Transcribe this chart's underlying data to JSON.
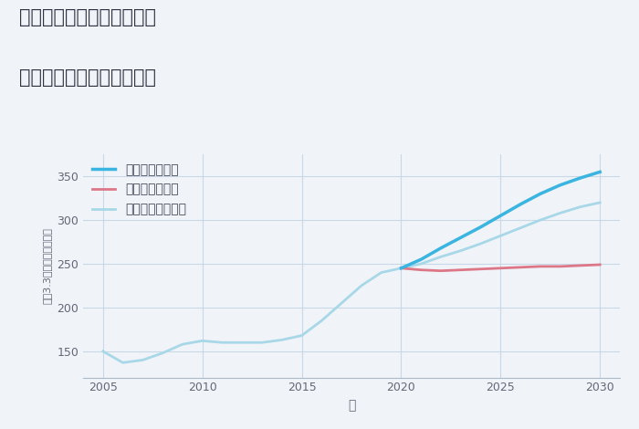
{
  "title_line1": "神奈川県横浜市中区寿町の",
  "title_line2": "中古マンションの価格推移",
  "xlabel": "年",
  "ylabel": "坪（3.3㎡）単価（万円）",
  "xlim": [
    2004,
    2031
  ],
  "ylim": [
    120,
    375
  ],
  "yticks": [
    150,
    200,
    250,
    300,
    350
  ],
  "xticks": [
    2005,
    2010,
    2015,
    2020,
    2025,
    2030
  ],
  "background_color": "#f0f4f8",
  "grid_color": "#c8d8e8",
  "historical": {
    "years": [
      2005,
      2006,
      2007,
      2008,
      2009,
      2010,
      2011,
      2012,
      2013,
      2014,
      2015,
      2016,
      2017,
      2018,
      2019,
      2020
    ],
    "values": [
      150,
      137,
      140,
      148,
      158,
      162,
      160,
      160,
      160,
      163,
      168,
      185,
      205,
      225,
      240,
      245
    ]
  },
  "good": {
    "label": "グッドシナリオ",
    "color": "#3ab4e0",
    "linewidth": 2.5,
    "years": [
      2020,
      2021,
      2022,
      2023,
      2024,
      2025,
      2026,
      2027,
      2028,
      2029,
      2030
    ],
    "values": [
      245,
      255,
      268,
      280,
      292,
      305,
      318,
      330,
      340,
      348,
      355
    ]
  },
  "bad": {
    "label": "バッドシナリオ",
    "color": "#dd7788",
    "linewidth": 2.0,
    "years": [
      2020,
      2021,
      2022,
      2023,
      2024,
      2025,
      2026,
      2027,
      2028,
      2029,
      2030
    ],
    "values": [
      245,
      243,
      242,
      243,
      244,
      245,
      246,
      247,
      247,
      248,
      249
    ]
  },
  "normal": {
    "label": "ノーマルシナリオ",
    "color": "#a8d8e8",
    "linewidth": 2.0,
    "years": [
      2020,
      2021,
      2022,
      2023,
      2024,
      2025,
      2026,
      2027,
      2028,
      2029,
      2030
    ],
    "values": [
      245,
      250,
      258,
      265,
      273,
      282,
      291,
      300,
      308,
      315,
      320
    ]
  }
}
